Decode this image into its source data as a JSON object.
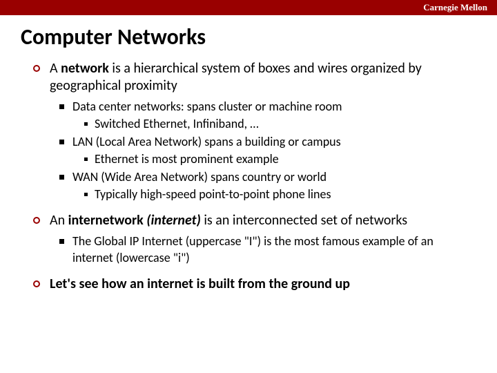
{
  "header": {
    "brand": "Carnegie Mellon"
  },
  "title": "Computer Networks",
  "colors": {
    "accent": "#990000",
    "text": "#000000",
    "bg": "#ffffff"
  },
  "items": {
    "a": {
      "pre": "A ",
      "bold": "network",
      "post": " is a hierarchical system of boxes and wires organized by geographical proximity"
    },
    "a1": "Data center networks: spans cluster or machine room",
    "a1a": "Switched Ethernet, Infiniband, …",
    "a2": "LAN (Local Area Network)  spans a building or campus",
    "a2a": "Ethernet is most prominent example",
    "a3": "WAN (Wide Area Network) spans country or world",
    "a3a": "Typically high-speed point-to-point phone lines",
    "b": {
      "pre": "An ",
      "bold": "internetwork ",
      "ital": "(internet)",
      "post": " is an interconnected set of networks"
    },
    "b1": "The Global IP Internet (uppercase \"I\") is the most famous example of an internet (lowercase \"i\")",
    "c": "Let's see how an internet is built from the ground up"
  }
}
